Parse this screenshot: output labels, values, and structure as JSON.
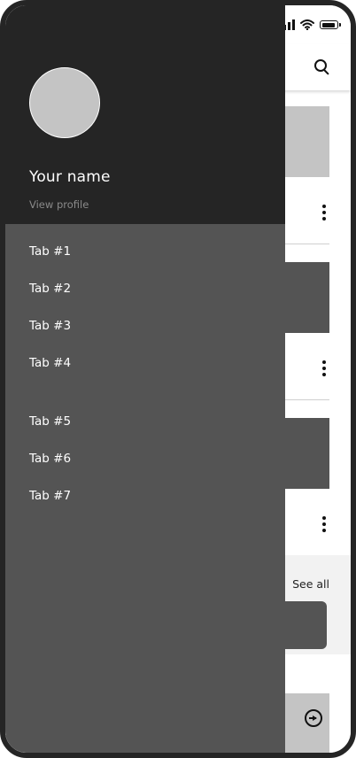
{
  "drawer": {
    "user_name": "Your name",
    "view_profile": "View profile",
    "tabs": [
      {
        "label": "Tab #1"
      },
      {
        "label": "Tab #2"
      },
      {
        "label": "Tab #3"
      },
      {
        "label": "Tab #4"
      },
      {
        "label": "Tab #5"
      },
      {
        "label": "Tab #6"
      },
      {
        "label": "Tab #7"
      }
    ]
  },
  "content": {
    "see_all": "See all"
  },
  "icons": {
    "search": "search-icon",
    "more": "more-vertical-icon",
    "arrow": "arrow-right-circle-icon",
    "wifi": "wifi-icon",
    "signal": "signal-icon",
    "battery": "battery-icon"
  },
  "colors": {
    "drawer_header": "#252525",
    "drawer_body": "#545454",
    "placeholder_light": "#c4c4c4",
    "placeholder_dark": "#545454",
    "section_band": "#f2f2f2"
  }
}
